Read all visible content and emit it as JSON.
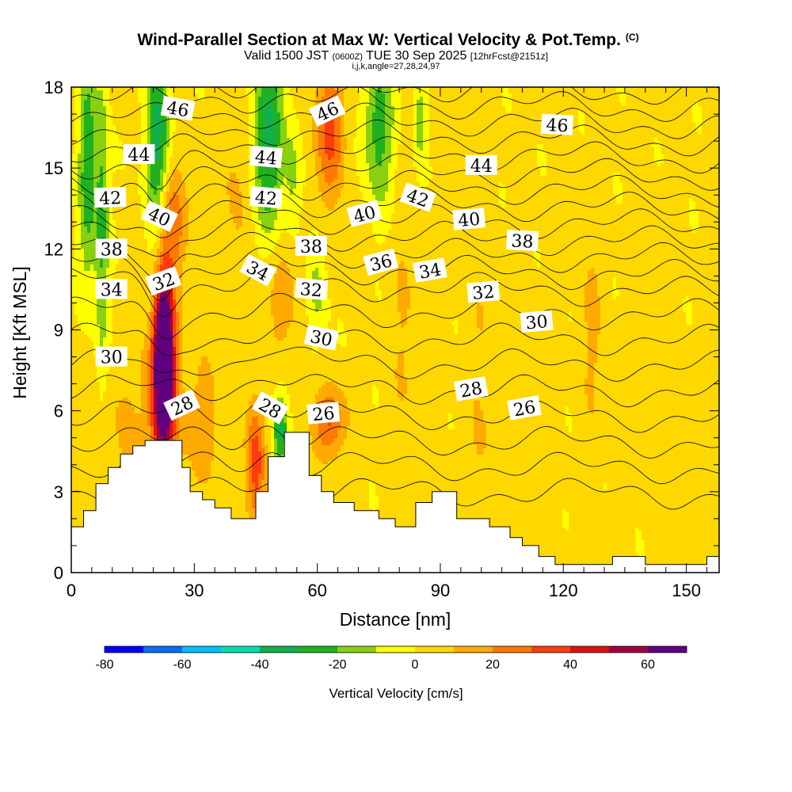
{
  "chart_data": {
    "type": "heatmap",
    "title": "Wind-Parallel Section at Max W: Vertical Velocity & Pot.Temp.",
    "title_mark": "(C)",
    "subtitle_main": "Valid 1500 JST",
    "subtitle_utc": "(0600Z)",
    "subtitle_date": "TUE 30 Sep 2025",
    "subtitle_fcst": "[12hrFcst@2151z]",
    "subtitle2": "i,j,k,angle=27,28,24,97",
    "xlabel": "Distance [nm]",
    "ylabel": "Height [Kft MSL]",
    "xlim": [
      0,
      158
    ],
    "ylim": [
      0,
      18
    ],
    "x_ticks": [
      0,
      30,
      60,
      90,
      120,
      150
    ],
    "y_ticks": [
      0,
      3,
      6,
      9,
      12,
      15,
      18
    ],
    "colorbar": {
      "label": "Vertical Velocity [cm/s]",
      "levels": [
        -80,
        -70,
        -60,
        -50,
        -40,
        -30,
        -20,
        -10,
        0,
        10,
        20,
        30,
        40,
        50,
        60,
        70
      ],
      "colors": [
        "#0000ff",
        "#0a6cff",
        "#00bfff",
        "#00e0b0",
        "#10b050",
        "#20b020",
        "#88d010",
        "#ffff00",
        "#ffd800",
        "#ffaa00",
        "#ff7a00",
        "#ff3c10",
        "#e01010",
        "#a00040",
        "#600080"
      ],
      "tick_labels": [
        "-80",
        "-60",
        "-40",
        "-20",
        "0",
        "20",
        "40",
        "60"
      ]
    },
    "terrain": [
      [
        0,
        1.7
      ],
      [
        3,
        1.7
      ],
      [
        3,
        2.3
      ],
      [
        6,
        2.3
      ],
      [
        6,
        3.3
      ],
      [
        9,
        3.3
      ],
      [
        9,
        3.9
      ],
      [
        12,
        3.9
      ],
      [
        12,
        4.4
      ],
      [
        15,
        4.4
      ],
      [
        15,
        4.7
      ],
      [
        18,
        4.7
      ],
      [
        18,
        4.9
      ],
      [
        27,
        4.9
      ],
      [
        27,
        3.9
      ],
      [
        29,
        3.9
      ],
      [
        29,
        3.0
      ],
      [
        32,
        3.0
      ],
      [
        32,
        2.7
      ],
      [
        35,
        2.7
      ],
      [
        35,
        2.4
      ],
      [
        39,
        2.4
      ],
      [
        39,
        2.0
      ],
      [
        45,
        2.0
      ],
      [
        45,
        3.0
      ],
      [
        48,
        3.0
      ],
      [
        48,
        4.3
      ],
      [
        52,
        4.3
      ],
      [
        52,
        5.2
      ],
      [
        58,
        5.2
      ],
      [
        58,
        3.6
      ],
      [
        61,
        3.6
      ],
      [
        61,
        3.0
      ],
      [
        64,
        3.0
      ],
      [
        64,
        2.6
      ],
      [
        69,
        2.6
      ],
      [
        69,
        2.3
      ],
      [
        75,
        2.3
      ],
      [
        75,
        2.0
      ],
      [
        79,
        2.0
      ],
      [
        79,
        1.7
      ],
      [
        84,
        1.7
      ],
      [
        84,
        2.6
      ],
      [
        88,
        2.6
      ],
      [
        88,
        3.0
      ],
      [
        94,
        3.0
      ],
      [
        94,
        2.0
      ],
      [
        102,
        2.0
      ],
      [
        102,
        1.7
      ],
      [
        107,
        1.7
      ],
      [
        107,
        1.3
      ],
      [
        110,
        1.3
      ],
      [
        110,
        1.0
      ],
      [
        114,
        1.0
      ],
      [
        114,
        0.6
      ],
      [
        118,
        0.6
      ],
      [
        118,
        0.3
      ],
      [
        132,
        0.3
      ],
      [
        132,
        0.6
      ],
      [
        140,
        0.6
      ],
      [
        140,
        0.3
      ],
      [
        155,
        0.3
      ],
      [
        155,
        0.6
      ],
      [
        158,
        0.6
      ],
      [
        158,
        0
      ],
      [
        0,
        0
      ]
    ],
    "w_features": [
      {
        "x": 22.5,
        "y": 8.0,
        "sx": 1.6,
        "sy": 2.0,
        "w": 85
      },
      {
        "x": 22.5,
        "y": 6.2,
        "sx": 2.6,
        "sy": 3.5,
        "w": 30
      },
      {
        "x": 24.0,
        "y": 13.0,
        "sx": 3.0,
        "sy": 1.5,
        "w": 25
      },
      {
        "x": 45.0,
        "y": 4.0,
        "sx": 1.6,
        "sy": 1.6,
        "w": 35
      },
      {
        "x": 63.0,
        "y": 5.6,
        "sx": 2.8,
        "sy": 0.9,
        "w": 30
      },
      {
        "x": 63.0,
        "y": 16.3,
        "sx": 2.6,
        "sy": 1.8,
        "w": 30
      },
      {
        "x": 50.0,
        "y": 10.5,
        "sx": 3.5,
        "sy": 2.0,
        "w": 15
      },
      {
        "x": 32.0,
        "y": 5.5,
        "sx": 3.5,
        "sy": 2.0,
        "w": 12
      },
      {
        "x": 14.0,
        "y": 5.5,
        "sx": 6.0,
        "sy": 2.5,
        "w": 8
      },
      {
        "x": 81.0,
        "y": 9.0,
        "sx": 2.5,
        "sy": 4.0,
        "w": 8
      },
      {
        "x": 100.0,
        "y": 9.5,
        "sx": 2.5,
        "sy": 2.5,
        "w": 6
      },
      {
        "x": 100.0,
        "y": 4.0,
        "sx": 3.0,
        "sy": 2.0,
        "w": 8
      },
      {
        "x": 113.0,
        "y": 4.0,
        "sx": 3.0,
        "sy": 3.0,
        "w": 7
      },
      {
        "x": 127.0,
        "y": 9.0,
        "sx": 2.0,
        "sy": 3.0,
        "w": 10
      },
      {
        "x": 142.0,
        "y": 8.0,
        "sx": 2.0,
        "sy": 2.5,
        "w": 8
      },
      {
        "x": 152.0,
        "y": 4.0,
        "sx": 3.0,
        "sy": 2.0,
        "w": 6
      },
      {
        "x": 95.0,
        "y": 16.5,
        "sx": 2.5,
        "sy": 2.0,
        "w": 8
      },
      {
        "x": 40.0,
        "y": 14.0,
        "sx": 2.5,
        "sy": 2.5,
        "w": 10
      },
      {
        "x": 4.0,
        "y": 15.0,
        "sx": 1.5,
        "sy": 3.0,
        "w": -30
      },
      {
        "x": 7.5,
        "y": 13.0,
        "sx": 1.2,
        "sy": 4.0,
        "w": -25
      },
      {
        "x": 21.0,
        "y": 15.5,
        "sx": 2.0,
        "sy": 3.0,
        "w": -38
      },
      {
        "x": 48.0,
        "y": 16.0,
        "sx": 2.6,
        "sy": 3.0,
        "w": -35
      },
      {
        "x": 54.0,
        "y": 14.5,
        "sx": 1.4,
        "sy": 1.5,
        "w": -15
      },
      {
        "x": 60.0,
        "y": 10.5,
        "sx": 1.5,
        "sy": 1.5,
        "w": -15
      },
      {
        "x": 51.0,
        "y": 5.3,
        "sx": 1.3,
        "sy": 1.0,
        "w": -35
      },
      {
        "x": 75.0,
        "y": 16.5,
        "sx": 2.5,
        "sy": 2.0,
        "w": -28
      },
      {
        "x": 85.0,
        "y": 16.8,
        "sx": 1.0,
        "sy": 1.2,
        "w": -18
      }
    ],
    "theta_levels": [
      26,
      27,
      28,
      29,
      30,
      31,
      32,
      33,
      34,
      35,
      36,
      37,
      38,
      39,
      40,
      41,
      42,
      43,
      44,
      45,
      46,
      47
    ],
    "theta_labels": [
      {
        "text": "46",
        "x": 26.0,
        "y": 17.2,
        "angle": 10
      },
      {
        "text": "44",
        "x": 16.5,
        "y": 15.5,
        "angle": 0
      },
      {
        "text": "42",
        "x": 9.5,
        "y": 13.9,
        "angle": -2
      },
      {
        "text": "40",
        "x": 21.5,
        "y": 13.2,
        "angle": 25
      },
      {
        "text": "38",
        "x": 9.8,
        "y": 12.0,
        "angle": 0
      },
      {
        "text": "34",
        "x": 9.8,
        "y": 10.5,
        "angle": 0
      },
      {
        "text": "32",
        "x": 22.5,
        "y": 10.8,
        "angle": -20
      },
      {
        "text": "30",
        "x": 9.8,
        "y": 8.0,
        "angle": 0
      },
      {
        "text": "28",
        "x": 27.0,
        "y": 6.2,
        "angle": -25
      },
      {
        "text": "44",
        "x": 47.5,
        "y": 15.4,
        "angle": 5
      },
      {
        "text": "42",
        "x": 47.5,
        "y": 13.9,
        "angle": 5
      },
      {
        "text": "46",
        "x": 62.5,
        "y": 17.1,
        "angle": -25
      },
      {
        "text": "38",
        "x": 58.5,
        "y": 12.1,
        "angle": 0
      },
      {
        "text": "34",
        "x": 45.5,
        "y": 11.2,
        "angle": 28
      },
      {
        "text": "32",
        "x": 58.5,
        "y": 10.5,
        "angle": 5
      },
      {
        "text": "30",
        "x": 61.0,
        "y": 8.7,
        "angle": 12
      },
      {
        "text": "28",
        "x": 48.5,
        "y": 6.1,
        "angle": 30
      },
      {
        "text": "26",
        "x": 61.5,
        "y": 5.9,
        "angle": -5
      },
      {
        "text": "40",
        "x": 71.5,
        "y": 13.3,
        "angle": -15
      },
      {
        "text": "36",
        "x": 75.5,
        "y": 11.5,
        "angle": -15
      },
      {
        "text": "42",
        "x": 84.5,
        "y": 13.9,
        "angle": 20
      },
      {
        "text": "34",
        "x": 87.5,
        "y": 11.2,
        "angle": -10
      },
      {
        "text": "40",
        "x": 97.0,
        "y": 13.1,
        "angle": -5
      },
      {
        "text": "44",
        "x": 100.0,
        "y": 15.1,
        "angle": 0
      },
      {
        "text": "32",
        "x": 100.5,
        "y": 10.4,
        "angle": -5
      },
      {
        "text": "28",
        "x": 97.5,
        "y": 6.8,
        "angle": -10
      },
      {
        "text": "38",
        "x": 110.0,
        "y": 12.3,
        "angle": 3
      },
      {
        "text": "30",
        "x": 113.5,
        "y": 9.3,
        "angle": -5
      },
      {
        "text": "26",
        "x": 110.5,
        "y": 6.1,
        "angle": -10
      },
      {
        "text": "46",
        "x": 118.5,
        "y": 16.6,
        "angle": 3
      }
    ]
  }
}
